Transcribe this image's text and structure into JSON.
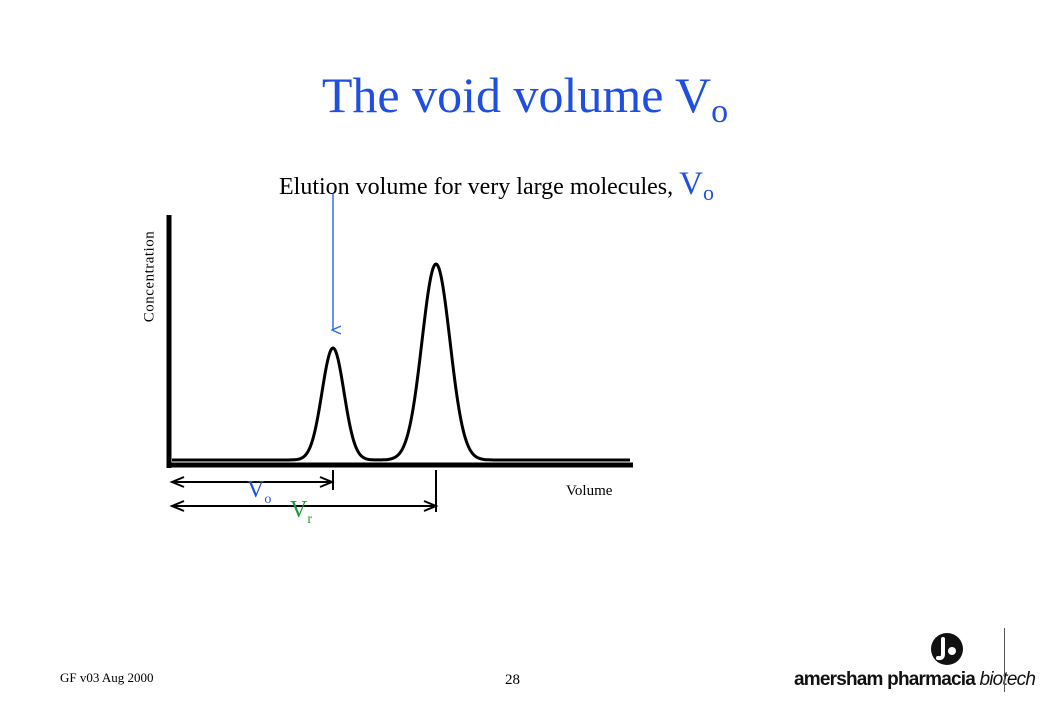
{
  "slide": {
    "title_main": "The void volume V",
    "title_sub": "o",
    "subtitle_text": "Elution volume for very large molecules,",
    "subtitle_symbol_main": "V",
    "subtitle_symbol_sub": "o"
  },
  "diagram": {
    "y_axis_label": "Concentration",
    "x_axis_label": "Volume",
    "vo_main": "V",
    "vo_sub": "o",
    "vr_main": "V",
    "vr_sub": "r",
    "colors": {
      "title_blue": "#1f4fe0",
      "arrow_blue": "#3a6fe8",
      "vr_green": "#1a9a3a",
      "curve": "#000000"
    }
  },
  "footer": {
    "left_text": "GF v03 Aug 2000",
    "page_number": "28",
    "logo_text_main": "amersham pharmacia",
    "logo_text_bio": "biotech",
    "logo_icon": "amersham-logo-icon"
  }
}
